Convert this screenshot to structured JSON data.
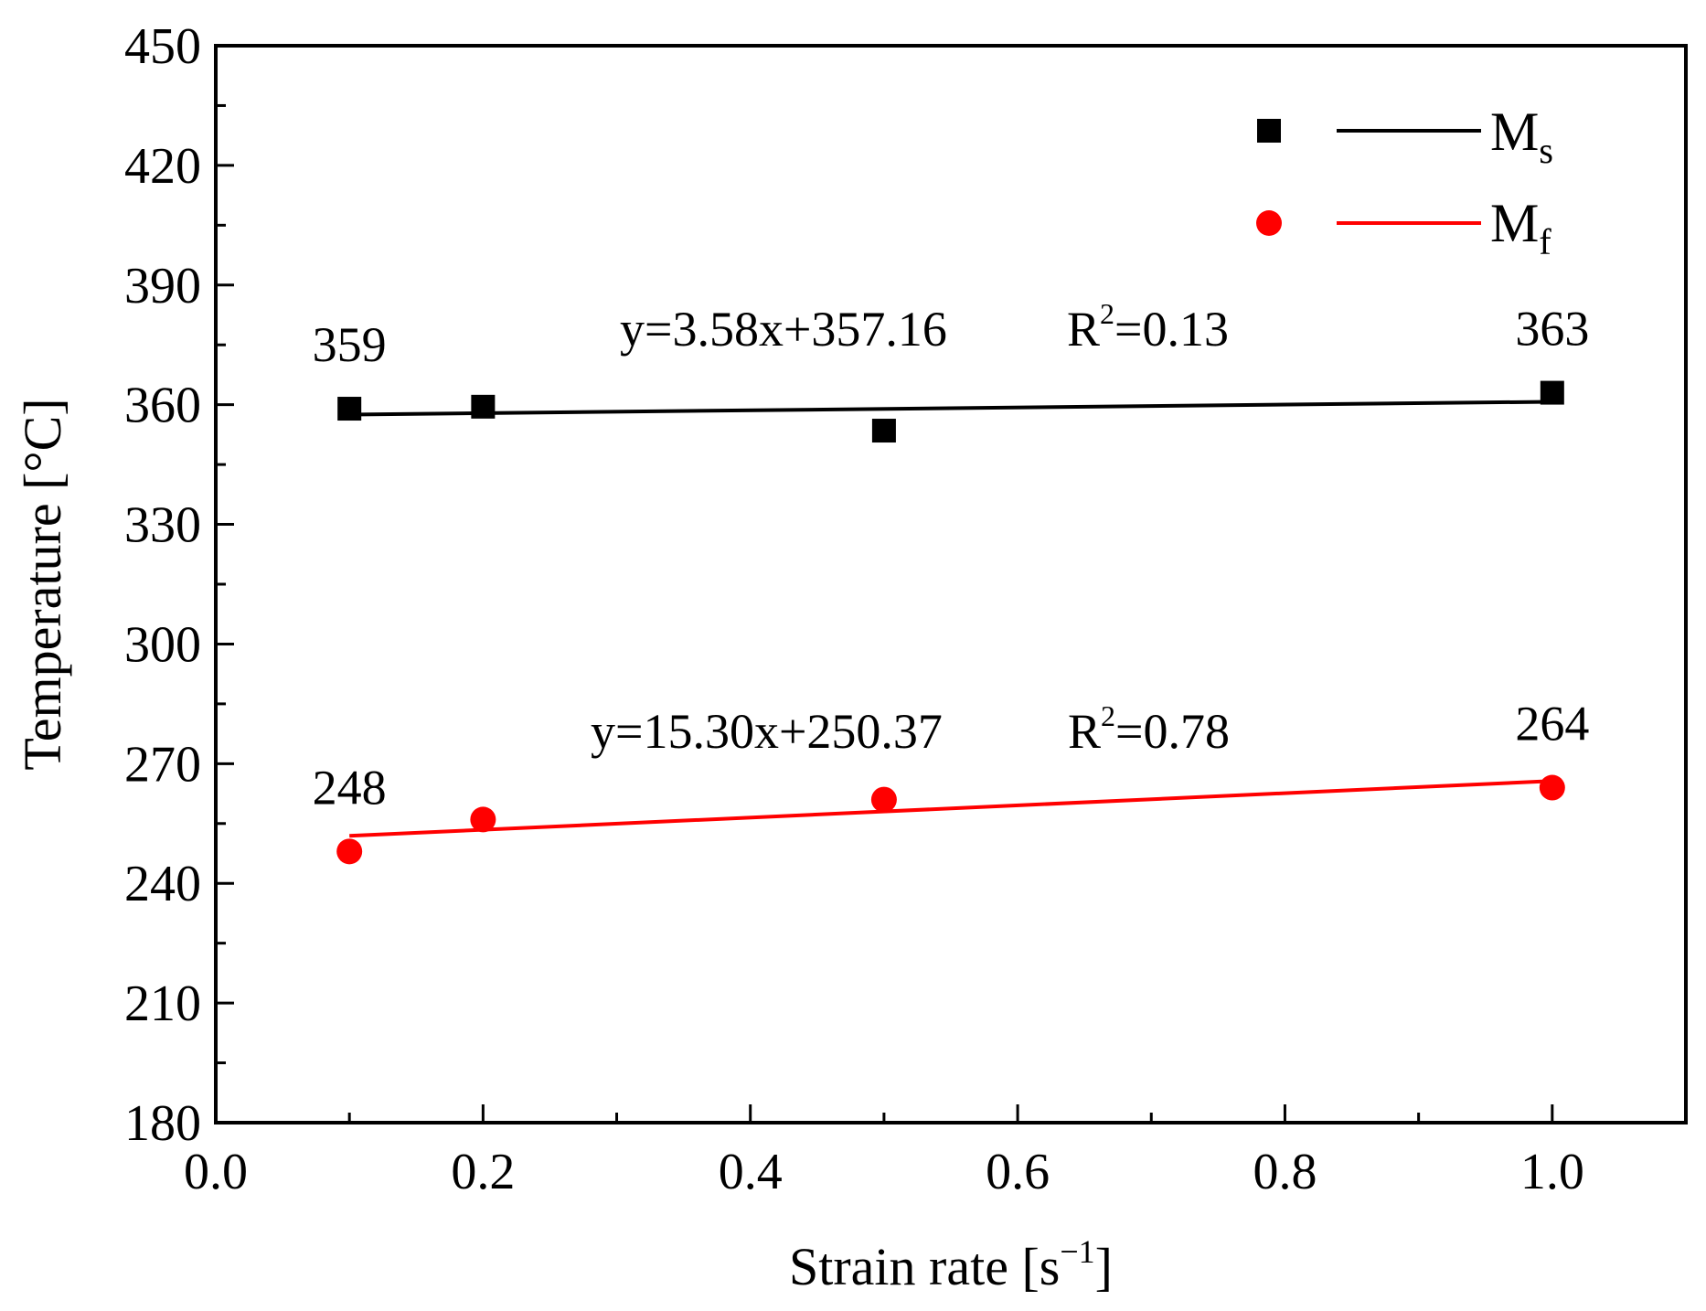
{
  "chart_data": {
    "type": "scatter",
    "title": "",
    "xlabel": "Strain rate [s",
    "xlabel_sup": "−1",
    "xlabel_end": "]",
    "ylabel": "Temperature [°C]",
    "xlim": [
      0.0,
      1.1
    ],
    "ylim": [
      180,
      450
    ],
    "xticks": [
      0.0,
      0.2,
      0.4,
      0.6,
      0.8,
      1.0
    ],
    "xtick_labels": [
      "0.0",
      "0.2",
      "0.4",
      "0.6",
      "0.8",
      "1.0"
    ],
    "yticks": [
      180,
      210,
      240,
      270,
      300,
      330,
      360,
      390,
      420,
      450
    ],
    "ytick_labels": [
      "180",
      "210",
      "240",
      "270",
      "300",
      "330",
      "360",
      "390",
      "420",
      "450"
    ],
    "legend_position": "top-right",
    "series": [
      {
        "name": "M",
        "name_sub": "s",
        "marker": "square",
        "color": "#000000",
        "x": [
          0.1,
          0.2,
          0.5,
          1.0
        ],
        "y": [
          359,
          359.5,
          353.5,
          363
        ],
        "fit": {
          "slope": 3.58,
          "intercept": 357.16,
          "x_range": [
            0.1,
            1.0
          ]
        },
        "equation": "y=3.58x+357.16",
        "r2_prefix": "R",
        "r2_sup": "2",
        "r2_value": "=0.13",
        "point_labels": [
          {
            "text": "359",
            "x": 0.1
          },
          {
            "text": "363",
            "x": 1.0
          }
        ]
      },
      {
        "name": "M",
        "name_sub": "f",
        "marker": "circle",
        "color": "#ff0000",
        "x": [
          0.1,
          0.2,
          0.5,
          1.0
        ],
        "y": [
          248,
          256,
          261,
          264
        ],
        "fit": {
          "slope": 15.3,
          "intercept": 250.37,
          "x_range": [
            0.1,
            1.0
          ]
        },
        "equation": "y=15.30x+250.37",
        "r2_prefix": "R",
        "r2_sup": "2",
        "r2_value": "=0.78",
        "point_labels": [
          {
            "text": "248",
            "x": 0.1
          },
          {
            "text": "264",
            "x": 1.0
          }
        ]
      }
    ]
  }
}
